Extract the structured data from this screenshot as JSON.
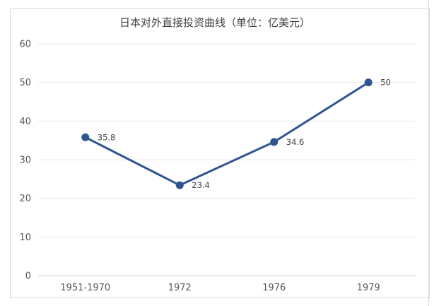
{
  "chart_data": {
    "type": "line",
    "title": "日本对外直接投资曲线（单位：亿美元）",
    "categories": [
      "1951-1970",
      "1972",
      "1976",
      "1979"
    ],
    "values": [
      35.8,
      23.4,
      34.6,
      50
    ],
    "data_labels": [
      "35.8",
      "23.4",
      "34.6",
      "50"
    ],
    "ylim": [
      0,
      60
    ],
    "y_ticks": [
      "0",
      "10",
      "20",
      "30",
      "40",
      "50",
      "60"
    ],
    "xlabel": "",
    "ylabel": "",
    "grid": true,
    "legend": "none",
    "colors": {
      "line": "#2e5590",
      "grid": "#e8e8e8",
      "axis": "#d0d0d0"
    }
  }
}
